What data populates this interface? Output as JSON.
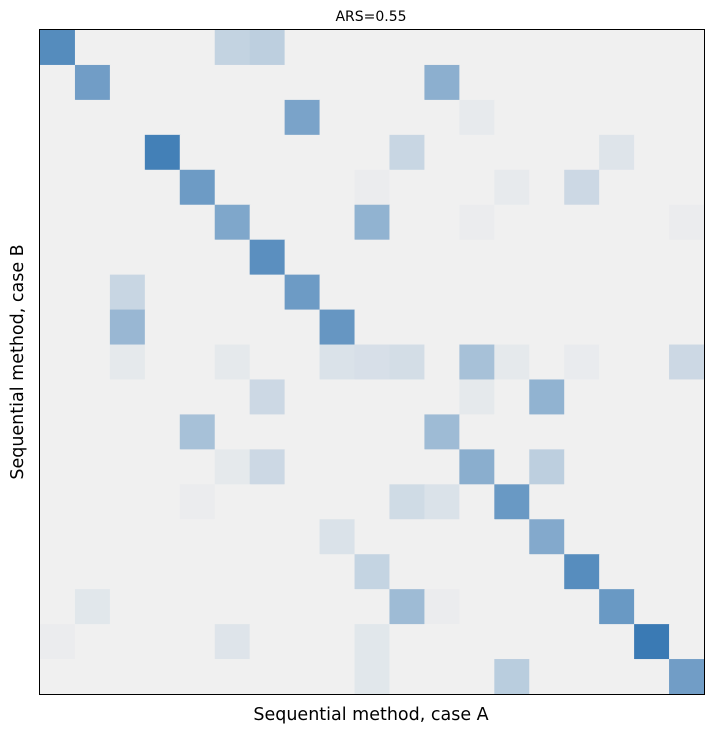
{
  "chart_data": {
    "type": "heatmap",
    "title": "ARS=0.55",
    "xlabel": "Sequential method, case A",
    "ylabel": "Sequential method, case B",
    "xticks": [],
    "yticks": [],
    "grid": false,
    "colormap": "Blues",
    "background_color": "#f0f0f0",
    "max_color": "#3a7ab4",
    "rows": 19,
    "cols": 19,
    "value_range": [
      0,
      1
    ],
    "matrix": [
      [
        0.85,
        0,
        0,
        0,
        0,
        0.25,
        0.28,
        0,
        0,
        0,
        0,
        0,
        0,
        0,
        0,
        0,
        0,
        0,
        0
      ],
      [
        0,
        0.7,
        0,
        0,
        0,
        0,
        0,
        0,
        0,
        0,
        0,
        0.55,
        0,
        0,
        0,
        0,
        0,
        0,
        0
      ],
      [
        0,
        0,
        0,
        0,
        0,
        0,
        0,
        0.65,
        0,
        0,
        0,
        0,
        0.05,
        0,
        0,
        0,
        0,
        0,
        0
      ],
      [
        0,
        0,
        0,
        0.95,
        0,
        0,
        0,
        0,
        0,
        0,
        0.22,
        0,
        0,
        0,
        0,
        0,
        0.1,
        0,
        0
      ],
      [
        0,
        0,
        0,
        0,
        0.72,
        0,
        0,
        0,
        0,
        0.03,
        0,
        0,
        0,
        0.05,
        0,
        0.2,
        0,
        0,
        0
      ],
      [
        0,
        0,
        0,
        0,
        0,
        0.62,
        0,
        0,
        0,
        0.52,
        0,
        0,
        0.03,
        0,
        0,
        0,
        0,
        0,
        0.03
      ],
      [
        0,
        0,
        0,
        0,
        0,
        0,
        0.82,
        0,
        0,
        0,
        0,
        0,
        0,
        0,
        0,
        0,
        0,
        0,
        0
      ],
      [
        0,
        0,
        0.22,
        0,
        0,
        0,
        0,
        0.72,
        0,
        0,
        0,
        0,
        0,
        0,
        0,
        0,
        0,
        0,
        0
      ],
      [
        0,
        0,
        0.48,
        0,
        0,
        0,
        0,
        0,
        0.76,
        0,
        0,
        0,
        0,
        0,
        0,
        0,
        0,
        0,
        0
      ],
      [
        0,
        0,
        0.06,
        0,
        0,
        0.06,
        0,
        0,
        0.12,
        0.14,
        0.16,
        0,
        0.4,
        0.06,
        0,
        0.04,
        0,
        0,
        0.2
      ],
      [
        0,
        0,
        0,
        0,
        0,
        0,
        0.2,
        0,
        0,
        0,
        0,
        0,
        0.06,
        0,
        0.52,
        0,
        0,
        0,
        0
      ],
      [
        0,
        0,
        0,
        0,
        0.4,
        0,
        0,
        0,
        0,
        0,
        0,
        0.45,
        0,
        0,
        0,
        0,
        0,
        0,
        0
      ],
      [
        0,
        0,
        0,
        0,
        0,
        0.06,
        0.2,
        0,
        0,
        0,
        0,
        0,
        0.56,
        0,
        0.28,
        0,
        0,
        0,
        0
      ],
      [
        0,
        0,
        0,
        0,
        0.03,
        0,
        0,
        0,
        0,
        0,
        0.18,
        0.12,
        0,
        0.74,
        0,
        0,
        0,
        0,
        0
      ],
      [
        0,
        0,
        0,
        0,
        0,
        0,
        0,
        0,
        0.12,
        0,
        0,
        0,
        0,
        0,
        0.6,
        0,
        0,
        0,
        0
      ],
      [
        0,
        0,
        0,
        0,
        0,
        0,
        0,
        0,
        0,
        0.24,
        0,
        0,
        0,
        0,
        0,
        0.84,
        0,
        0,
        0
      ],
      [
        0,
        0.08,
        0,
        0,
        0,
        0,
        0,
        0,
        0,
        0,
        0.45,
        0.03,
        0,
        0,
        0,
        0,
        0.74,
        0,
        0
      ],
      [
        0.03,
        0,
        0,
        0,
        0,
        0.1,
        0,
        0,
        0,
        0.08,
        0,
        0,
        0,
        0,
        0,
        0,
        0,
        1.0,
        0
      ],
      [
        0,
        0,
        0,
        0,
        0,
        0,
        0,
        0,
        0,
        0.08,
        0,
        0,
        0,
        0.3,
        0,
        0,
        0,
        0,
        0.7
      ]
    ]
  }
}
